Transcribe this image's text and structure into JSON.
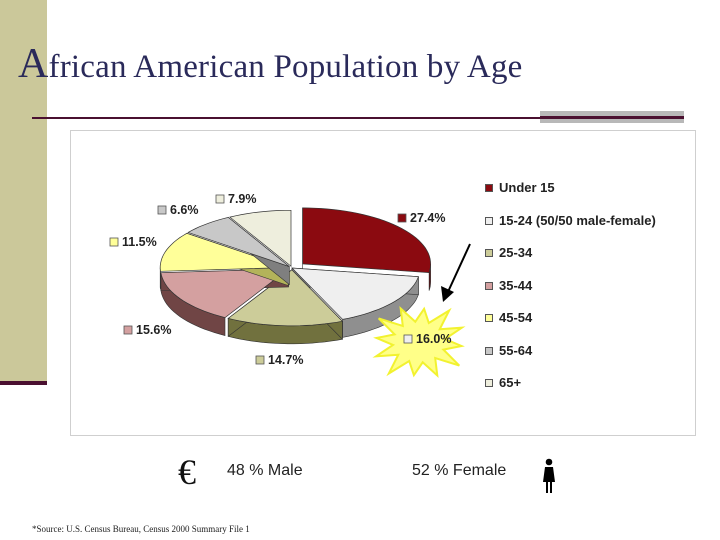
{
  "slide": {
    "title_initial": "A",
    "title_rest": "frican American Population by Age",
    "male_symbol": "€",
    "male_text": "48 % Male",
    "female_text": "52 % Female",
    "female_icon": "female-figure-icon",
    "source": "*Source: U.S. Census Bureau, Census 2000 Summary File 1",
    "callout_icon": "starburst-callout-icon",
    "arrow_icon": "arrow-icon"
  },
  "chart_data": {
    "type": "pie",
    "style": "3d-exploded",
    "categories": [
      "Under 15",
      "15-24 (50/50 male-female)",
      "25-34",
      "35-44",
      "45-54",
      "55-64",
      "65+"
    ],
    "values": [
      27.4,
      16.0,
      14.7,
      15.6,
      11.5,
      6.6,
      7.9
    ],
    "labels": [
      "27.4%",
      "16.0%",
      "14.7%",
      "15.6%",
      "11.5%",
      "6.6%",
      "7.9%"
    ],
    "colors": [
      "#8b0a10",
      "#efefef",
      "#cccc99",
      "#d4a0a0",
      "#ffff99",
      "#c8c8c8",
      "#eeeedd"
    ],
    "side_colors": [
      "#560508",
      "#8f8f8f",
      "#71713e",
      "#704545",
      "#b3b35a",
      "#7f7f7f",
      "#9a9a80"
    ],
    "highlighted_category": "15-24 (50/50 male-female)",
    "legend_position": "right"
  }
}
